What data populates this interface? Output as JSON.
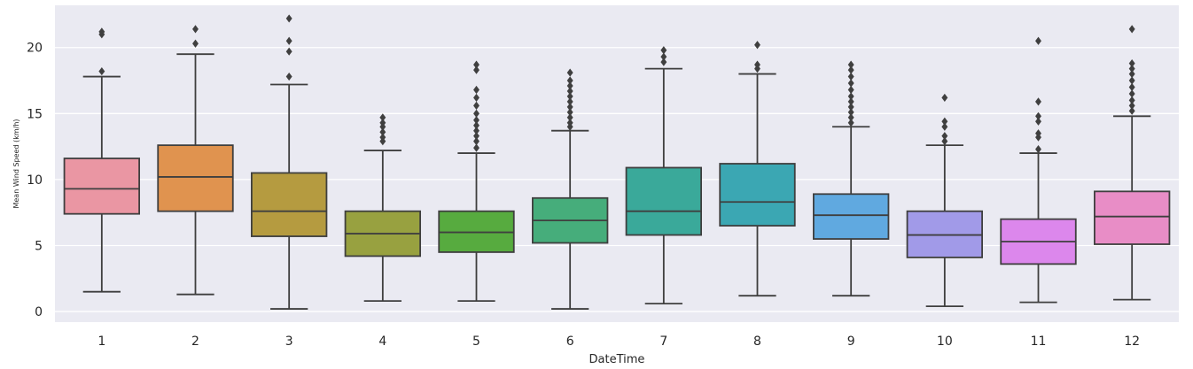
{
  "chart_data": {
    "type": "box",
    "title": "",
    "xlabel": "DateTime",
    "ylabel": "Mean Wind Speed (km/h)",
    "ylim": [
      -0.8,
      23.2
    ],
    "yticks": [
      0,
      5,
      10,
      15,
      20
    ],
    "grid": true,
    "categories": [
      "1",
      "2",
      "3",
      "4",
      "5",
      "6",
      "7",
      "8",
      "9",
      "10",
      "11",
      "12"
    ],
    "colors": [
      "#ea96a3",
      "#e0934f",
      "#b59b40",
      "#98a140",
      "#57ab3f",
      "#46ad7b",
      "#3aa99a",
      "#3ba7b3",
      "#60a9e0",
      "#a19ae8",
      "#dc87ec",
      "#e88dc6"
    ],
    "boxes": [
      {
        "month": "1",
        "low": 1.5,
        "q1": 7.4,
        "median": 9.3,
        "q3": 11.6,
        "high": 17.8,
        "outliers": [
          18.2,
          21.0,
          21.2
        ]
      },
      {
        "month": "2",
        "low": 1.3,
        "q1": 7.6,
        "median": 10.2,
        "q3": 12.6,
        "high": 19.5,
        "outliers": [
          20.3,
          21.4
        ]
      },
      {
        "month": "3",
        "low": 0.2,
        "q1": 5.7,
        "median": 7.6,
        "q3": 10.5,
        "high": 17.2,
        "outliers": [
          17.8,
          19.7,
          20.5,
          22.2
        ]
      },
      {
        "month": "4",
        "low": 0.8,
        "q1": 4.2,
        "median": 5.9,
        "q3": 7.6,
        "high": 12.2,
        "outliers": [
          12.9,
          13.2,
          13.6,
          14.0,
          14.3,
          14.7
        ]
      },
      {
        "month": "5",
        "low": 0.8,
        "q1": 4.5,
        "median": 6.0,
        "q3": 7.6,
        "high": 12.0,
        "outliers": [
          12.4,
          12.9,
          13.3,
          13.7,
          14.1,
          14.5,
          15.0,
          15.6,
          16.2,
          16.8,
          18.3,
          18.7
        ]
      },
      {
        "month": "6",
        "low": 0.2,
        "q1": 5.2,
        "median": 6.9,
        "q3": 8.6,
        "high": 13.7,
        "outliers": [
          14.0,
          14.3,
          14.7,
          15.1,
          15.5,
          15.9,
          16.3,
          16.7,
          17.1,
          17.5,
          18.1
        ]
      },
      {
        "month": "7",
        "low": 0.6,
        "q1": 5.8,
        "median": 7.6,
        "q3": 10.9,
        "high": 18.4,
        "outliers": [
          18.9,
          19.3,
          19.8
        ]
      },
      {
        "month": "8",
        "low": 1.2,
        "q1": 6.5,
        "median": 8.3,
        "q3": 11.2,
        "high": 18.0,
        "outliers": [
          18.4,
          18.7,
          20.2
        ]
      },
      {
        "month": "9",
        "low": 1.2,
        "q1": 5.5,
        "median": 7.3,
        "q3": 8.9,
        "high": 14.0,
        "outliers": [
          14.3,
          14.7,
          15.1,
          15.5,
          15.9,
          16.3,
          16.8,
          17.3,
          17.8,
          18.3,
          18.7
        ]
      },
      {
        "month": "10",
        "low": 0.4,
        "q1": 4.1,
        "median": 5.8,
        "q3": 7.6,
        "high": 12.6,
        "outliers": [
          12.9,
          13.3,
          14.0,
          14.4,
          16.2
        ]
      },
      {
        "month": "11",
        "low": 0.7,
        "q1": 3.6,
        "median": 5.3,
        "q3": 7.0,
        "high": 12.0,
        "outliers": [
          12.3,
          13.2,
          13.5,
          14.4,
          14.8,
          15.9,
          20.5
        ]
      },
      {
        "month": "12",
        "low": 0.9,
        "q1": 5.1,
        "median": 7.2,
        "q3": 9.1,
        "high": 14.8,
        "outliers": [
          15.2,
          15.6,
          16.0,
          16.5,
          17.0,
          17.5,
          18.0,
          18.4,
          18.8,
          21.4
        ]
      }
    ]
  }
}
